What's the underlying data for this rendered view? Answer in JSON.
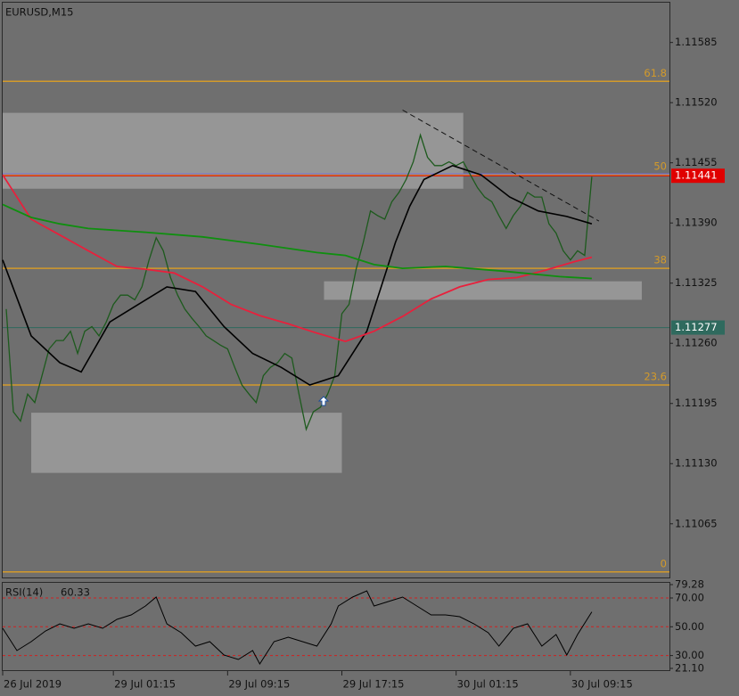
{
  "chart_data": [
    {
      "type": "line",
      "title": "EURUSD,M15",
      "xlim": [
        0,
        186.75
      ],
      "ylim": [
        1.11007,
        1.11628
      ],
      "yticks": [
        1.11585,
        {
          "value": 1.1152,
          "label": "1.11520"
        },
        1.11455,
        {
          "value": 1.1139,
          "label": "1.11390"
        },
        1.11325,
        {
          "value": 1.1126,
          "label": "1.11260"
        },
        1.11195,
        {
          "value": 1.1113,
          "label": "1.11130"
        },
        1.11065
      ],
      "xticks": [
        {
          "value": 0,
          "label": "26 Jul 2019"
        },
        {
          "value": 31,
          "label": "29 Jul 01:15"
        },
        {
          "value": 63,
          "label": "29 Jul 09:15"
        },
        {
          "value": 95,
          "label": "29 Jul 17:15"
        },
        {
          "value": 127,
          "label": "30 Jul 01:15"
        },
        {
          "value": 159,
          "label": "30 Jul 09:15"
        }
      ],
      "series": [
        {
          "color": "#1d5a1d",
          "width": 1.3,
          "x": [
            1,
            3,
            5,
            7,
            9,
            11,
            13,
            15,
            17,
            19,
            21,
            23,
            25,
            27,
            29,
            31,
            33,
            35,
            37,
            39,
            41,
            43,
            45,
            47,
            49,
            51,
            53,
            55,
            57,
            59,
            61,
            63,
            65,
            67,
            69,
            71,
            73,
            75,
            77,
            79,
            81,
            83,
            85,
            87,
            89,
            91,
            93,
            95,
            97,
            99,
            101,
            103,
            105,
            107,
            109,
            111,
            113,
            115,
            117,
            119,
            121,
            123,
            125,
            127,
            129,
            131,
            133,
            135,
            137,
            139,
            141,
            143,
            145,
            147,
            149,
            151,
            153,
            155,
            157,
            159,
            161,
            163,
            165
          ],
          "values": [
            1.11297,
            1.11186,
            1.11176,
            1.11205,
            1.11196,
            1.11225,
            1.11254,
            1.11263,
            1.11263,
            1.11273,
            1.11249,
            1.11273,
            1.11278,
            1.11268,
            1.11283,
            1.11302,
            1.11312,
            1.11312,
            1.11307,
            1.11321,
            1.1135,
            1.11374,
            1.1136,
            1.11331,
            1.11312,
            1.11297,
            1.11287,
            1.11278,
            1.11268,
            1.11263,
            1.11258,
            1.11254,
            1.11234,
            1.11215,
            1.11205,
            1.11196,
            1.11225,
            1.11234,
            1.11239,
            1.11249,
            1.11244,
            1.11205,
            1.11167,
            1.11186,
            1.11191,
            1.11205,
            1.11225,
            1.11292,
            1.11302,
            1.1134,
            1.11369,
            1.11403,
            1.11398,
            1.11394,
            1.11413,
            1.11423,
            1.11437,
            1.11456,
            1.11485,
            1.11461,
            1.11452,
            1.11452,
            1.11456,
            1.11452,
            1.11456,
            1.11442,
            1.11428,
            1.11418,
            1.11413,
            1.11398,
            1.11384,
            1.11398,
            1.11408,
            1.11423,
            1.11418,
            1.11418,
            1.11389,
            1.11379,
            1.1136,
            1.1135,
            1.1136,
            1.11355,
            1.1144
          ]
        },
        {
          "color": "#000000",
          "width": 1.6,
          "x": [
            0,
            8,
            16,
            22,
            30,
            38,
            46,
            54,
            62,
            70,
            78,
            86,
            94,
            102,
            106,
            110,
            114,
            118,
            126,
            134,
            142,
            150,
            158,
            165
          ],
          "values": [
            1.1135,
            1.11268,
            1.11239,
            1.11229,
            1.11283,
            1.11302,
            1.11321,
            1.11316,
            1.11278,
            1.11249,
            1.11234,
            1.11215,
            1.11225,
            1.11273,
            1.11321,
            1.11369,
            1.11408,
            1.11437,
            1.11452,
            1.11442,
            1.11418,
            1.11403,
            1.11397,
            1.11389
          ]
        },
        {
          "color": "#e8203c",
          "width": 1.8,
          "x": [
            0,
            8,
            16,
            24,
            32,
            40,
            48,
            56,
            64,
            72,
            80,
            88,
            96,
            104,
            112,
            120,
            128,
            136,
            144,
            152,
            160,
            165
          ],
          "values": [
            1.11442,
            1.11394,
            1.11377,
            1.1136,
            1.11343,
            1.1134,
            1.11336,
            1.11321,
            1.11302,
            1.1129,
            1.11281,
            1.11271,
            1.11262,
            1.11273,
            1.11289,
            1.11308,
            1.11321,
            1.11329,
            1.11331,
            1.11339,
            1.11348,
            1.11353
          ]
        },
        {
          "color": "#0f8f0f",
          "width": 1.8,
          "x": [
            0,
            8,
            16,
            24,
            40,
            56,
            72,
            88,
            96,
            104,
            112,
            124,
            140,
            156,
            165
          ],
          "values": [
            1.1141,
            1.11396,
            1.11389,
            1.11384,
            1.1138,
            1.11375,
            1.11367,
            1.11358,
            1.11355,
            1.11345,
            1.11341,
            1.11343,
            1.11338,
            1.11332,
            1.1133
          ]
        }
      ],
      "fib_levels": [
        {
          "level": 61.8,
          "price": 1.11543
        },
        {
          "level": 50,
          "price": 1.11442
        },
        {
          "level": 38,
          "price": 1.11341
        },
        {
          "level": 23.6,
          "price": 1.11215
        },
        {
          "level": 0,
          "price": 1.11013
        }
      ],
      "fib_color": "#d39a2a",
      "zones": [
        {
          "x0": 0,
          "x1": 129,
          "top": 1.11509,
          "bottom": 1.11427
        },
        {
          "x0": 90,
          "x1": 179,
          "top": 1.11327,
          "bottom": 1.11307
        },
        {
          "x0": 8,
          "x1": 95,
          "top": 1.11185,
          "bottom": 1.1112
        }
      ],
      "trendline": {
        "x": [
          112,
          167
        ],
        "values": [
          1.11512,
          1.11392
        ]
      },
      "price_lines": [
        {
          "value": 1.11443,
          "color": "#6a6af0",
          "tag": false
        },
        {
          "value": 1.11441,
          "color": "#e00000",
          "tag": true
        },
        {
          "value": 1.11277,
          "color": "#2f6a5e",
          "tag": true
        }
      ]
    },
    {
      "type": "line",
      "label": "RSI(14)",
      "value": 60.33,
      "xlim": [
        0,
        186.75
      ],
      "ylim": [
        21.1,
        79.28
      ],
      "yticks": [
        79.28,
        {
          "value": 70,
          "label": "70.00"
        },
        {
          "value": 50,
          "label": "50.00"
        },
        {
          "value": 30,
          "label": "30.00"
        },
        {
          "value": 21.1,
          "label": "21.10"
        }
      ],
      "levels": [
        70,
        50,
        30
      ],
      "level_color": "#d02020",
      "color": "#000000",
      "x": [
        0,
        4,
        8,
        12,
        16,
        20,
        24,
        28,
        32,
        36,
        40,
        43,
        46,
        50,
        54,
        58,
        62,
        66,
        70,
        72,
        76,
        80,
        84,
        88,
        92,
        94,
        98,
        102,
        104,
        108,
        112,
        116,
        120,
        124,
        128,
        132,
        136,
        139,
        143,
        147,
        151,
        155,
        158,
        161,
        165
      ],
      "values": [
        48.95,
        33.48,
        39.67,
        47.1,
        52.05,
        48.95,
        52.05,
        48.95,
        55.14,
        58.24,
        64.43,
        70.62,
        52.05,
        45.86,
        36.58,
        39.67,
        30.39,
        27.29,
        33.48,
        24.2,
        39.67,
        42.76,
        39.67,
        36.58,
        52.05,
        64.43,
        70.62,
        74.95,
        64.43,
        67.52,
        70.62,
        64.43,
        58.24,
        58.24,
        57.0,
        52.05,
        45.86,
        36.58,
        48.95,
        52.05,
        36.58,
        44.62,
        30.39,
        44.62,
        60.33
      ]
    }
  ]
}
